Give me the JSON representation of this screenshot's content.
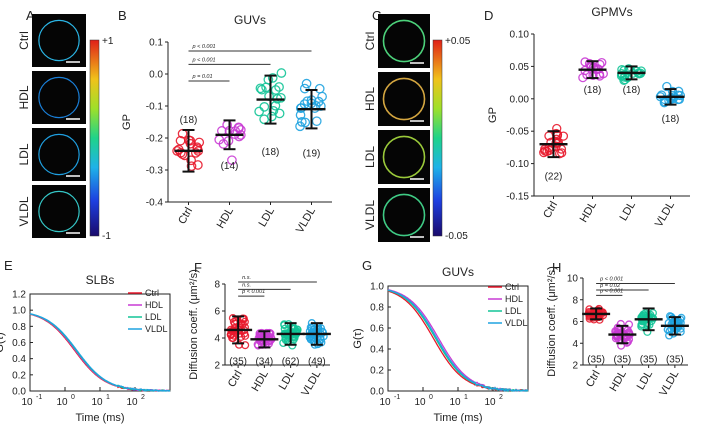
{
  "colors": {
    "ctrl": "#e8192c",
    "hdl": "#c93bd4",
    "ldl": "#12c497",
    "vldl": "#1fa3e0",
    "black": "#111111"
  },
  "panels": {
    "A": {
      "letter": "A",
      "rows": [
        "Ctrl",
        "HDL",
        "LDL",
        "VLDL"
      ],
      "colorbar_max": "+1",
      "colorbar_min": "-1"
    },
    "C": {
      "letter": "C",
      "rows": [
        "Ctrl",
        "HDL",
        "LDL",
        "VLDL"
      ],
      "colorbar_max": "+0.05",
      "colorbar_min": "-0.05"
    }
  },
  "chart_data": [
    {
      "id": "B",
      "letter": "B",
      "type": "scatter",
      "title": "GUVs",
      "ylabel": "GP",
      "xlabel": "",
      "categories": [
        "Ctrl",
        "HDL",
        "LDL",
        "VLDL"
      ],
      "ylim": [
        -0.4,
        0.1
      ],
      "yticks": [
        "-0.4",
        "-0.3",
        "-0.2",
        "-0.1",
        "0.0",
        "0.1"
      ],
      "means": [
        -0.24,
        -0.19,
        -0.08,
        -0.11
      ],
      "sd": [
        0.065,
        0.045,
        0.075,
        0.06
      ],
      "n_labels": [
        "(18)",
        "(14)",
        "(18)",
        "(19)"
      ],
      "n_positions": [
        -0.14,
        -0.285,
        -0.24,
        -0.245
      ],
      "significance": [
        {
          "label": "p = 0.01",
          "from": 0,
          "to": 1,
          "y": -0.022
        },
        {
          "label": "p < 0.001",
          "from": 0,
          "to": 2,
          "y": 0.03
        },
        {
          "label": "p < 0.001",
          "from": 0,
          "to": 3,
          "y": 0.072
        }
      ]
    },
    {
      "id": "D",
      "letter": "D",
      "type": "scatter",
      "title": "GPMVs",
      "ylabel": "GP",
      "xlabel": "",
      "categories": [
        "Ctrl",
        "HDL",
        "LDL",
        "VLDL"
      ],
      "ylim": [
        -0.15,
        0.1
      ],
      "yticks": [
        "-0.15",
        "-0.10",
        "-0.05",
        "0.00",
        "0.05",
        "0.10"
      ],
      "means": [
        -0.07,
        0.045,
        0.04,
        0.003
      ],
      "sd": [
        0.02,
        0.013,
        0.01,
        0.012
      ],
      "n_labels": [
        "(22)",
        "(18)",
        "(18)",
        "(18)"
      ],
      "n_positions": [
        -0.118,
        0.015,
        0.015,
        -0.03
      ],
      "significance": []
    },
    {
      "id": "E",
      "letter": "E",
      "type": "line",
      "title": "SLBs",
      "ylabel": "G(τ)",
      "xlabel": "Time (ms)",
      "xscale": "log",
      "xlim": [
        0.1,
        1000
      ],
      "ylim": [
        0,
        1.2
      ],
      "xticks": [
        "10",
        "10",
        "10",
        "10"
      ],
      "xtick_exps": [
        "-1",
        "0",
        "1",
        "2"
      ],
      "yticks": [
        "0.0",
        "0.2",
        "0.4",
        "0.6",
        "0.8",
        "1.0",
        "1.2"
      ],
      "series": [
        {
          "name": "Ctrl",
          "tauD": 1.9
        },
        {
          "name": "HDL",
          "tauD": 2.0
        },
        {
          "name": "LDL",
          "tauD": 2.1
        },
        {
          "name": "VLDL",
          "tauD": 2.2
        }
      ]
    },
    {
      "id": "F",
      "letter": "F",
      "type": "scatter",
      "title": "",
      "ylabel": "Diffusion coeff. (μm²/s)",
      "xlabel": "",
      "categories": [
        "Ctrl",
        "HDL",
        "LDL",
        "VLDL"
      ],
      "ylim": [
        2,
        8
      ],
      "yticks": [
        "2",
        "4",
        "6",
        "8"
      ],
      "means": [
        4.6,
        3.9,
        4.3,
        4.3
      ],
      "sd": [
        1.0,
        0.6,
        0.8,
        0.8
      ],
      "n_labels": [
        "(35)",
        "(34)",
        "(62)",
        "(49)"
      ],
      "n_positions": [
        2.35,
        2.35,
        2.35,
        2.35
      ],
      "significance": [
        {
          "label": "p < 0.001",
          "from": 0,
          "to": 1,
          "y": 7.1
        },
        {
          "label": "n.s.",
          "from": 0,
          "to": 2,
          "y": 7.6
        },
        {
          "label": "n.s.",
          "from": 0,
          "to": 3,
          "y": 8.15
        }
      ]
    },
    {
      "id": "G",
      "letter": "G",
      "type": "line",
      "title": "GUVs",
      "ylabel": "G(τ)",
      "xlabel": "Time (ms)",
      "xscale": "log",
      "xlim": [
        0.1,
        1000
      ],
      "ylim": [
        0,
        1.0
      ],
      "xticks": [
        "10",
        "10",
        "10",
        "10"
      ],
      "xtick_exps": [
        "-1",
        "0",
        "1",
        "2"
      ],
      "yticks": [
        "0.0",
        "0.2",
        "0.4",
        "0.6",
        "0.8",
        "1.0"
      ],
      "series": [
        {
          "name": "Ctrl",
          "tauD": 2.0
        },
        {
          "name": "HDL",
          "tauD": 2.8
        },
        {
          "name": "LDL",
          "tauD": 2.3
        },
        {
          "name": "VLDL",
          "tauD": 2.5
        }
      ]
    },
    {
      "id": "H",
      "letter": "H",
      "type": "scatter",
      "title": "",
      "ylabel": "Diffusion coeff. (μm²/s)",
      "xlabel": "",
      "categories": [
        "Ctrl",
        "HDL",
        "LDL",
        "VLDL"
      ],
      "ylim": [
        2,
        10
      ],
      "yticks": [
        "2",
        "4",
        "6",
        "8",
        "10"
      ],
      "means": [
        6.7,
        4.8,
        6.2,
        5.6
      ],
      "sd": [
        0.5,
        0.8,
        1.0,
        0.8
      ],
      "n_labels": [
        "(35)",
        "(35)",
        "(35)",
        "(35)"
      ],
      "n_positions": [
        2.6,
        2.6,
        2.6,
        2.6
      ],
      "significance": [
        {
          "label": "p < 0.001",
          "from": 0,
          "to": 1,
          "y": 8.4
        },
        {
          "label": "p = 0.02",
          "from": 0,
          "to": 2,
          "y": 8.9
        },
        {
          "label": "p < 0.001",
          "from": 0,
          "to": 3,
          "y": 9.5
        }
      ]
    }
  ]
}
